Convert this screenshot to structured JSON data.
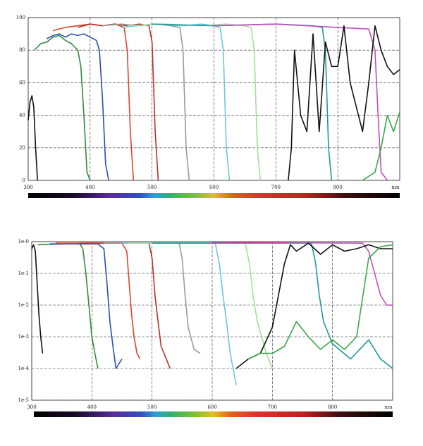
{
  "chart_data": [
    {
      "type": "line",
      "yscale": "linear",
      "grid": true,
      "x_label": "nm",
      "xlim": [
        300,
        900
      ],
      "xticks": [
        300,
        400,
        500,
        600,
        700,
        800
      ],
      "ylim": [
        0,
        100
      ],
      "yticks": [
        0,
        20,
        40,
        60,
        80,
        100
      ],
      "series": [
        {
          "color": "#111111",
          "x": [
            300,
            303,
            306,
            309,
            312,
            315
          ],
          "values": [
            37,
            48,
            52,
            45,
            20,
            0
          ]
        },
        {
          "color": "#2e8b3e",
          "x": [
            310,
            320,
            330,
            340,
            350,
            360,
            370,
            380,
            385,
            390,
            395,
            400
          ],
          "values": [
            80,
            84,
            85,
            88,
            89,
            86,
            84,
            80,
            70,
            40,
            5,
            0
          ]
        },
        {
          "color": "#2a4fb0",
          "x": [
            330,
            340,
            350,
            360,
            370,
            380,
            390,
            400,
            410,
            415,
            420,
            425,
            430
          ],
          "values": [
            87,
            89,
            90,
            88,
            90,
            89,
            90,
            88,
            86,
            80,
            50,
            10,
            0
          ]
        },
        {
          "color": "#e0442a",
          "x": [
            340,
            360,
            380,
            400,
            420,
            440,
            455,
            460,
            465,
            470
          ],
          "values": [
            92,
            94,
            95,
            96,
            95,
            96,
            94,
            80,
            30,
            0
          ]
        },
        {
          "color": "#b8322a",
          "x": [
            380,
            400,
            420,
            440,
            460,
            480,
            495,
            500,
            505,
            510
          ],
          "values": [
            94,
            96,
            95,
            96,
            95,
            96,
            95,
            85,
            30,
            0
          ]
        },
        {
          "color": "#9a9a9a",
          "x": [
            420,
            450,
            480,
            510,
            530,
            545,
            550,
            555,
            560
          ],
          "values": [
            95,
            96,
            95,
            96,
            95,
            94,
            80,
            20,
            0
          ]
        },
        {
          "color": "#6cc6e0",
          "x": [
            450,
            500,
            550,
            580,
            600,
            610,
            615,
            620,
            625
          ],
          "values": [
            94,
            96,
            95,
            96,
            95,
            94,
            80,
            20,
            0
          ]
        },
        {
          "color": "#a8dca0",
          "x": [
            460,
            520,
            580,
            620,
            650,
            660,
            665,
            670,
            675
          ],
          "values": [
            95,
            96,
            95,
            96,
            95,
            94,
            80,
            20,
            0
          ]
        },
        {
          "color": "#1f9a9a",
          "x": [
            500,
            600,
            700,
            760,
            775,
            780,
            785,
            790
          ],
          "values": [
            96,
            95,
            96,
            95,
            94,
            80,
            20,
            0
          ]
        },
        {
          "color": "#c050b8",
          "x": [
            600,
            700,
            800,
            850,
            860,
            865,
            870,
            880
          ],
          "values": [
            95,
            96,
            94,
            93,
            80,
            40,
            5,
            0
          ]
        },
        {
          "color": "#111111",
          "x": [
            720,
            725,
            730,
            740,
            750,
            760,
            770,
            780,
            790,
            800,
            810,
            820,
            830,
            840,
            850,
            860,
            870,
            880,
            890,
            900
          ],
          "values": [
            0,
            20,
            80,
            40,
            30,
            90,
            30,
            85,
            70,
            70,
            95,
            60,
            45,
            30,
            60,
            95,
            80,
            70,
            65,
            68
          ]
        },
        {
          "color": "#3aa84a",
          "x": [
            840,
            860,
            870,
            880,
            890,
            900
          ],
          "values": [
            0,
            5,
            20,
            40,
            30,
            42
          ]
        }
      ]
    },
    {
      "type": "line",
      "yscale": "log",
      "grid": true,
      "x_label": "nm",
      "xlim": [
        300,
        900
      ],
      "xticks": [
        300,
        400,
        500,
        600,
        700,
        800
      ],
      "ylim": [
        1e-05,
        1
      ],
      "yticks": [
        {
          "value": 1,
          "label": "1e-0"
        },
        {
          "value": 0.1,
          "label": "1e-1"
        },
        {
          "value": 0.01,
          "label": "1e-2"
        },
        {
          "value": 0.001,
          "label": "1e-3"
        },
        {
          "value": 0.0001,
          "label": "1e-4"
        },
        {
          "value": 1e-05,
          "label": "1e-5"
        }
      ],
      "series": [
        {
          "color": "#111111",
          "x": [
            300,
            303,
            306,
            309,
            312,
            315,
            318
          ],
          "values": [
            0.6,
            0.8,
            0.5,
            0.05,
            0.005,
            0.001,
            0.0003
          ]
        },
        {
          "color": "#2e8b3e",
          "x": [
            310,
            350,
            380,
            385,
            390,
            395,
            400,
            405,
            410
          ],
          "values": [
            0.8,
            0.85,
            0.85,
            0.6,
            0.1,
            0.01,
            0.001,
            0.0003,
            0.0001
          ]
        },
        {
          "color": "#2a4fb0",
          "x": [
            330,
            410,
            420,
            425,
            430,
            435,
            440,
            450
          ],
          "values": [
            0.85,
            0.85,
            0.6,
            0.05,
            0.003,
            0.0005,
            0.0001,
            0.0002
          ]
        },
        {
          "color": "#e0442a",
          "x": [
            340,
            450,
            458,
            462,
            466,
            470,
            475,
            480
          ],
          "values": [
            0.9,
            0.9,
            0.5,
            0.05,
            0.005,
            0.001,
            0.0003,
            0.0002
          ]
        },
        {
          "color": "#b8322a",
          "x": [
            380,
            495,
            500,
            505,
            510,
            515,
            520,
            530
          ],
          "values": [
            0.9,
            0.9,
            0.3,
            0.02,
            0.003,
            0.0005,
            0.0003,
            0.0001
          ]
        },
        {
          "color": "#9a9a9a",
          "x": [
            420,
            545,
            550,
            555,
            560,
            570,
            580
          ],
          "values": [
            0.9,
            0.9,
            0.3,
            0.02,
            0.002,
            0.0004,
            0.0003
          ]
        },
        {
          "color": "#6cc6e0",
          "x": [
            450,
            605,
            612,
            618,
            625,
            630,
            640
          ],
          "values": [
            0.9,
            0.9,
            0.2,
            0.02,
            0.002,
            0.0003,
            3e-05
          ]
        },
        {
          "color": "#a8dca0",
          "x": [
            460,
            655,
            662,
            668,
            675,
            690,
            700
          ],
          "values": [
            0.9,
            0.9,
            0.2,
            0.02,
            0.003,
            0.0003,
            0.0001
          ]
        },
        {
          "color": "#1f9a9a",
          "x": [
            500,
            765,
            772,
            778,
            785,
            800,
            830,
            860,
            880,
            900
          ],
          "values": [
            0.9,
            0.9,
            0.2,
            0.02,
            0.003,
            0.0006,
            0.0002,
            0.0008,
            0.0002,
            0.0001
          ]
        },
        {
          "color": "#c050b8",
          "x": [
            600,
            850,
            860,
            870,
            880,
            890,
            900
          ],
          "values": [
            0.95,
            0.9,
            0.5,
            0.1,
            0.02,
            0.01,
            0.01
          ]
        },
        {
          "color": "#111111",
          "x": [
            640,
            660,
            680,
            700,
            710,
            720,
            730,
            740,
            760,
            780,
            800,
            820,
            840,
            860,
            880,
            900
          ],
          "values": [
            0.0001,
            0.0002,
            0.0003,
            0.002,
            0.02,
            0.2,
            0.8,
            0.5,
            0.9,
            0.4,
            0.8,
            0.5,
            0.6,
            0.8,
            0.6,
            0.6
          ]
        },
        {
          "color": "#3aa84a",
          "x": [
            660,
            680,
            700,
            720,
            740,
            760,
            780,
            800,
            820,
            840,
            860,
            880,
            900
          ],
          "values": [
            0.0002,
            0.0003,
            0.0003,
            0.0005,
            0.003,
            0.001,
            0.0004,
            0.0008,
            0.0004,
            0.001,
            0.3,
            0.7,
            0.8
          ]
        }
      ]
    }
  ]
}
